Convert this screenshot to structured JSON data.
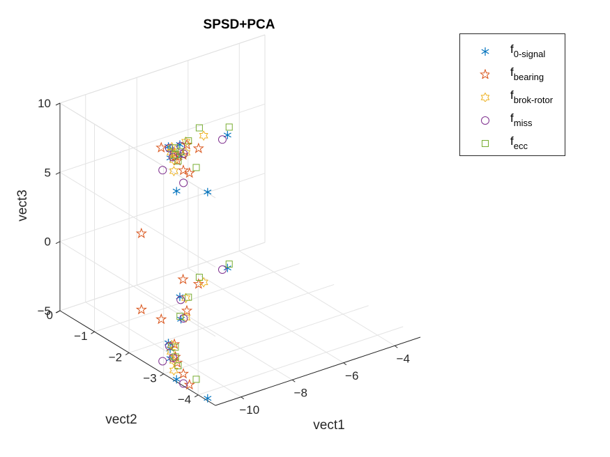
{
  "chart_data": {
    "type": "scatter",
    "title": "SPSD+PCA",
    "xlabel": "vect1",
    "ylabel": "vect2",
    "zlabel": "vect3",
    "xlim": [
      -11,
      -3
    ],
    "ylim": [
      -4.5,
      0
    ],
    "zlim": [
      -5,
      10
    ],
    "xticks": [
      -10,
      -8,
      -6,
      -4
    ],
    "yticks": [
      0,
      -1,
      -2,
      -3,
      -4
    ],
    "zticks": [
      10,
      5,
      0,
      -5
    ],
    "grid": true,
    "legend_position": "outside-top-right",
    "series": [
      {
        "name_main": "f",
        "name_sub": "0-signal",
        "marker": "asterisk",
        "color": "#0072BD",
        "points": [
          {
            "x": -10.9,
            "y": -4.2,
            "z": 9.9
          },
          {
            "x": -10.9,
            "y": -3.3,
            "z": 8.6
          },
          {
            "x": -10.2,
            "y": -2.6,
            "z": 9.5
          },
          {
            "x": -9.8,
            "y": -2.3,
            "z": 9.4
          },
          {
            "x": -9.6,
            "y": -2.1,
            "z": 9.2
          },
          {
            "x": -8.3,
            "y": -1.5,
            "z": 6.8
          },
          {
            "x": -7.4,
            "y": -0.8,
            "z": 6.0
          },
          {
            "x": -5.0,
            "y": -0.4,
            "z": 4.6
          }
        ]
      },
      {
        "name_main": "f",
        "name_sub": "bearing",
        "marker": "pentagram",
        "color": "#D95319",
        "points": [
          {
            "x": -10.8,
            "y": -3.6,
            "z": 10.3
          },
          {
            "x": -10.5,
            "y": -3.2,
            "z": 9.7
          },
          {
            "x": -10.2,
            "y": -2.8,
            "z": 9.6
          },
          {
            "x": -10.0,
            "y": -2.6,
            "z": 9.5
          },
          {
            "x": -9.5,
            "y": -2.2,
            "z": 8.8
          },
          {
            "x": -8.8,
            "y": -1.3,
            "z": 7.4
          },
          {
            "x": -7.8,
            "y": -1.3,
            "z": 7.0
          },
          {
            "x": -6.4,
            "y": -0.6,
            "z": 4.8
          },
          {
            "x": -6.6,
            "y": -0.3,
            "z": 4.0
          },
          {
            "x": -8.9,
            "y": -0.8,
            "z": 0.5
          }
        ]
      },
      {
        "name_main": "f",
        "name_sub": "brok-rotor",
        "marker": "hexagram",
        "color": "#EDB120",
        "points": [
          {
            "x": -10.6,
            "y": -3.0,
            "z": 9.4
          },
          {
            "x": -10.2,
            "y": -2.7,
            "z": 9.5
          },
          {
            "x": -9.9,
            "y": -2.4,
            "z": 9.4
          },
          {
            "x": -9.6,
            "y": -2.2,
            "z": 9.3
          },
          {
            "x": -8.1,
            "y": -1.5,
            "z": 6.9
          },
          {
            "x": -7.3,
            "y": -0.9,
            "z": 6.3
          },
          {
            "x": -6.2,
            "y": -0.6,
            "z": 5.6
          }
        ]
      },
      {
        "name_main": "f",
        "name_sub": "miss",
        "marker": "circle",
        "color": "#7E2F8E",
        "points": [
          {
            "x": -10.9,
            "y": -3.5,
            "z": 9.5
          },
          {
            "x": -10.5,
            "y": -2.6,
            "z": 8.8
          },
          {
            "x": -10.1,
            "y": -2.6,
            "z": 9.5
          },
          {
            "x": -9.7,
            "y": -2.2,
            "z": 9.3
          },
          {
            "x": -8.2,
            "y": -1.5,
            "z": 6.9
          },
          {
            "x": -7.5,
            "y": -0.9,
            "z": 6.1
          },
          {
            "x": -5.2,
            "y": -0.4,
            "z": 4.4
          }
        ]
      },
      {
        "name_main": "f",
        "name_sub": "ecc",
        "marker": "square",
        "color": "#77AC30",
        "points": [
          {
            "x": -10.4,
            "y": -3.5,
            "z": 10.3
          },
          {
            "x": -10.3,
            "y": -2.9,
            "z": 9.8
          },
          {
            "x": -10.0,
            "y": -2.6,
            "z": 9.6
          },
          {
            "x": -9.6,
            "y": -2.3,
            "z": 9.4
          },
          {
            "x": -8.2,
            "y": -1.4,
            "z": 6.9
          },
          {
            "x": -7.2,
            "y": -0.9,
            "z": 6.3
          },
          {
            "x": -6.1,
            "y": -0.4,
            "z": 5.8
          },
          {
            "x": -4.8,
            "y": -0.3,
            "z": 4.9
          }
        ]
      }
    ]
  }
}
